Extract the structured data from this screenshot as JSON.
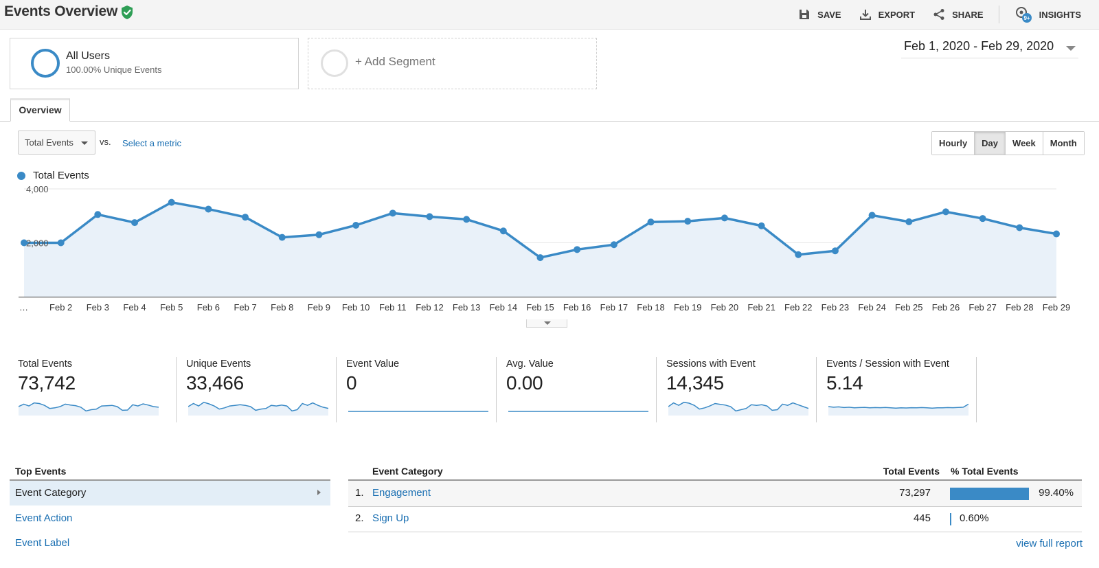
{
  "header": {
    "title": "Events Overview",
    "actions": {
      "save": "SAVE",
      "export": "EXPORT",
      "share": "SHARE",
      "insights": "INSIGHTS",
      "insights_badge": "9+"
    }
  },
  "segments": {
    "all_users": {
      "name": "All Users",
      "sub": "100.00% Unique Events"
    },
    "add_label": "+ Add Segment"
  },
  "date_range": "Feb 1, 2020 - Feb 29, 2020",
  "tabs": {
    "overview": "Overview"
  },
  "metric_picker": {
    "selected": "Total Events",
    "vs": "vs.",
    "select_metric": "Select a metric"
  },
  "granularity": [
    "Hourly",
    "Day",
    "Week",
    "Month"
  ],
  "granularity_active": "Day",
  "chart_data": {
    "type": "area",
    "series": [
      {
        "name": "Total Events",
        "values": [
          2000,
          2000,
          3050,
          2750,
          3500,
          3250,
          2950,
          2200,
          2300,
          2650,
          3100,
          2970,
          2870,
          2440,
          1450,
          1750,
          1930,
          2770,
          2800,
          2920,
          2630,
          1560,
          1700,
          3020,
          2780,
          3150,
          2900,
          2560,
          2330
        ]
      }
    ],
    "x_labels": [
      "…",
      "Feb 2",
      "Feb 3",
      "Feb 4",
      "Feb 5",
      "Feb 6",
      "Feb 7",
      "Feb 8",
      "Feb 9",
      "Feb 10",
      "Feb 11",
      "Feb 12",
      "Feb 13",
      "Feb 14",
      "Feb 15",
      "Feb 16",
      "Feb 17",
      "Feb 18",
      "Feb 19",
      "Feb 20",
      "Feb 21",
      "Feb 22",
      "Feb 23",
      "Feb 24",
      "Feb 25",
      "Feb 26",
      "Feb 27",
      "Feb 28",
      "Feb 29"
    ],
    "y_ticks": [
      "4,000",
      "2,000"
    ],
    "ylim": [
      0,
      4000
    ],
    "grid": true,
    "legend": "top-left",
    "color": "#3a8ac6"
  },
  "metrics": [
    {
      "label": "Total Events",
      "value": "73,742",
      "spark": [
        0.5,
        0.7,
        0.55,
        0.8,
        0.75,
        0.6,
        0.35,
        0.4,
        0.5,
        0.7,
        0.62,
        0.58,
        0.45,
        0.15,
        0.25,
        0.3,
        0.55,
        0.57,
        0.6,
        0.5,
        0.2,
        0.22,
        0.65,
        0.55,
        0.72,
        0.62,
        0.5,
        0.45
      ]
    },
    {
      "label": "Unique Events",
      "value": "33,466",
      "spark": [
        0.5,
        0.75,
        0.55,
        0.85,
        0.72,
        0.55,
        0.3,
        0.4,
        0.55,
        0.6,
        0.65,
        0.6,
        0.5,
        0.2,
        0.3,
        0.35,
        0.6,
        0.55,
        0.62,
        0.55,
        0.15,
        0.25,
        0.75,
        0.6,
        0.8,
        0.6,
        0.45,
        0.35
      ]
    },
    {
      "label": "Event Value",
      "value": "0",
      "spark": [
        0,
        0,
        0,
        0,
        0,
        0,
        0,
        0,
        0,
        0,
        0,
        0,
        0,
        0,
        0,
        0,
        0,
        0,
        0,
        0,
        0,
        0,
        0,
        0,
        0,
        0,
        0,
        0
      ]
    },
    {
      "label": "Avg. Value",
      "value": "0.00",
      "spark": [
        0,
        0,
        0,
        0,
        0,
        0,
        0,
        0,
        0,
        0,
        0,
        0,
        0,
        0,
        0,
        0,
        0,
        0,
        0,
        0,
        0,
        0,
        0,
        0,
        0,
        0,
        0,
        0
      ]
    },
    {
      "label": "Sessions with Event",
      "value": "14,345",
      "spark": [
        0.5,
        0.8,
        0.6,
        0.85,
        0.78,
        0.6,
        0.3,
        0.4,
        0.55,
        0.75,
        0.68,
        0.62,
        0.5,
        0.15,
        0.25,
        0.35,
        0.65,
        0.6,
        0.65,
        0.55,
        0.2,
        0.25,
        0.7,
        0.6,
        0.8,
        0.65,
        0.5,
        0.35
      ]
    },
    {
      "label": "Events / Session with Event",
      "value": "5.14",
      "spark": [
        0.5,
        0.45,
        0.48,
        0.42,
        0.45,
        0.4,
        0.42,
        0.44,
        0.4,
        0.42,
        0.41,
        0.43,
        0.4,
        0.38,
        0.4,
        0.39,
        0.41,
        0.4,
        0.42,
        0.4,
        0.38,
        0.4,
        0.4,
        0.42,
        0.41,
        0.43,
        0.45,
        0.7
      ]
    }
  ],
  "top_events": {
    "title": "Top Events",
    "items": [
      "Event Category",
      "Event Action",
      "Event Label"
    ],
    "active": "Event Category"
  },
  "table": {
    "headers": {
      "category": "Event Category",
      "total": "Total Events",
      "pct": "% Total Events"
    },
    "rows": [
      {
        "idx": "1.",
        "name": "Engagement",
        "total": "73,297",
        "pct": "99.40%",
        "share": 0.994
      },
      {
        "idx": "2.",
        "name": "Sign Up",
        "total": "445",
        "pct": "0.60%",
        "share": 0.006
      }
    ],
    "view_full": "view full report"
  },
  "colors": {
    "accent": "#3a8ac6",
    "link": "#1a6fb2",
    "verified": "#2e9e55"
  }
}
